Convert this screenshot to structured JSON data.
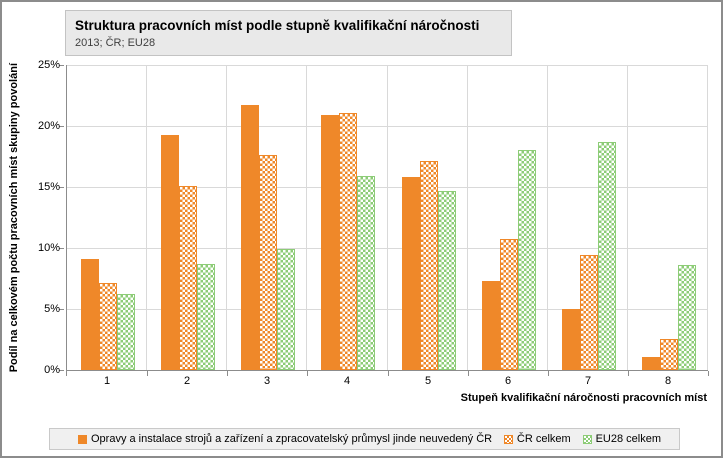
{
  "title_box": {
    "title": "Struktura pracovních míst podle stupně kvalifikační náročnosti",
    "subtitle": "2013; ČR; EU28"
  },
  "chart_data": {
    "type": "bar",
    "categories": [
      "1",
      "2",
      "3",
      "4",
      "5",
      "6",
      "7",
      "8"
    ],
    "series": [
      {
        "name": "Opravy a instalace strojů a zařízení a zpracovatelský průmysl jinde neuvedený ČR",
        "fill_style": "solid",
        "color": "#ef8829",
        "values": [
          9.1,
          19.3,
          21.7,
          20.9,
          15.8,
          7.3,
          5.0,
          1.1
        ]
      },
      {
        "name": "ČR celkem",
        "fill_style": "checker",
        "color": "#ef8829",
        "values": [
          7.1,
          15.1,
          17.6,
          21.1,
          17.1,
          10.7,
          9.4,
          2.5
        ]
      },
      {
        "name": "EU28 celkem",
        "fill_style": "checker",
        "color": "#8dcc77",
        "values": [
          6.2,
          8.7,
          9.9,
          15.9,
          14.7,
          18.0,
          18.7,
          8.6
        ]
      }
    ],
    "xlabel": "Stupeň kvalifikační náročnosti pracovních míst",
    "ylabel": "Podíl na celkovém počtu pracovních míst skupiny povolání",
    "ylim": [
      0,
      25
    ],
    "ytick_step": 5,
    "ytick_labels": [
      "0%",
      "5%",
      "10%",
      "15%",
      "20%",
      "25%"
    ],
    "grid": true,
    "legend_position": "bottom"
  },
  "style_colors": {
    "gridline": "#d9d9d9",
    "axis": "#8c8c8c",
    "title_box_bg": "#e9e9e9",
    "legend_bg": "#f0f0f0",
    "outer_border": "#8c8c8c"
  }
}
